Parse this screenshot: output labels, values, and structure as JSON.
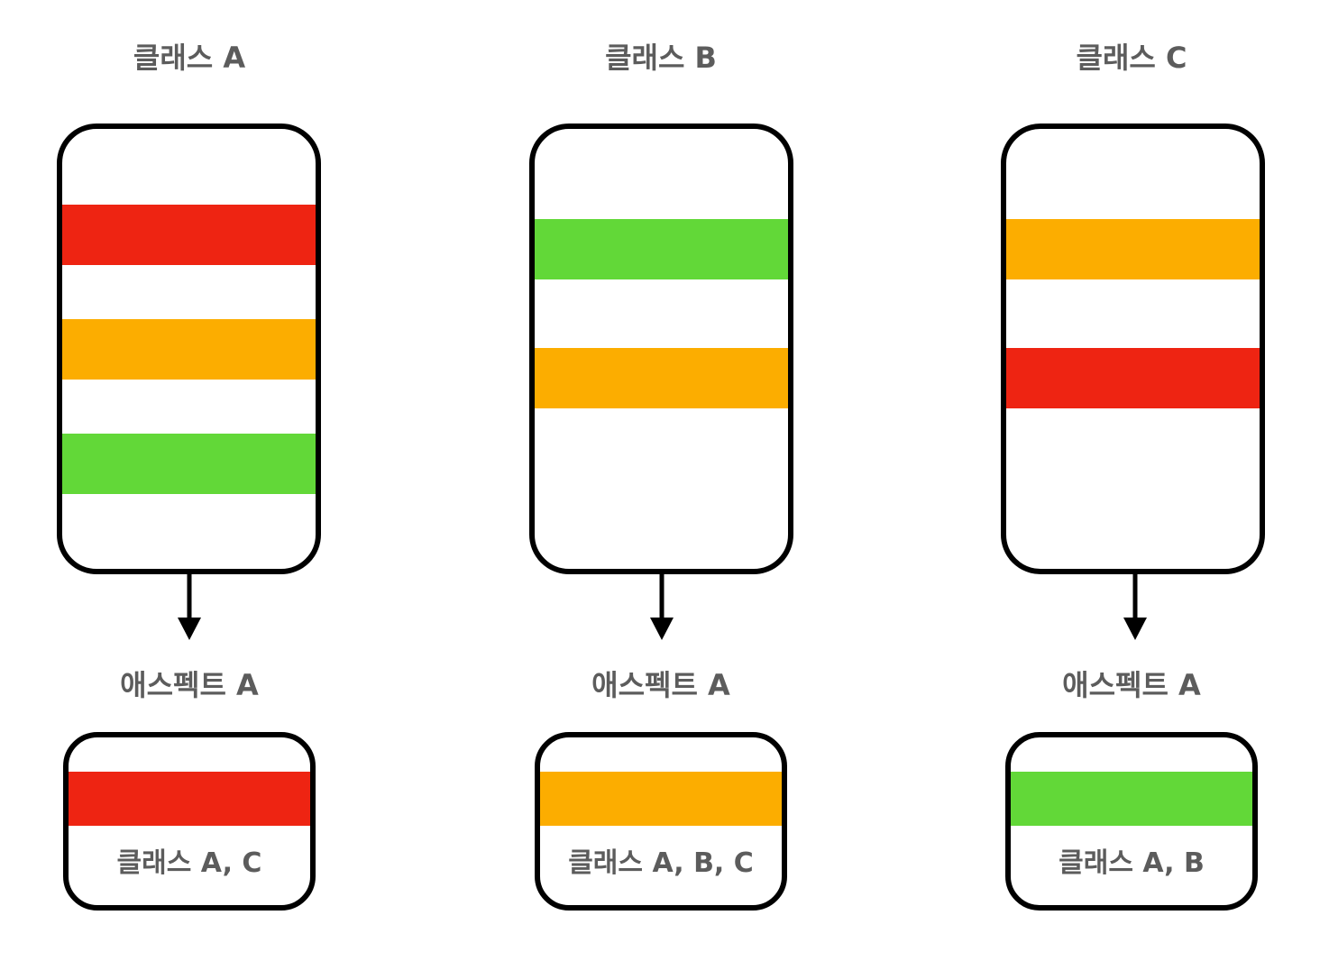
{
  "colors": {
    "red": "#ee2412",
    "orange": "#fcad00",
    "green": "#62d838",
    "text": "#5c5c5c",
    "border": "#000000"
  },
  "columns": [
    {
      "class_title": "클래스 A",
      "stripes": [
        "red",
        "orange",
        "green"
      ],
      "arrow_icon": "down-arrow-icon",
      "aspect_title": "애스펙트 A",
      "aspect_stripe": "red",
      "aspect_label": "클래스 A, C"
    },
    {
      "class_title": "클래스 B",
      "stripes": [
        "green",
        "orange"
      ],
      "arrow_icon": "down-arrow-icon",
      "aspect_title": "애스펙트 A",
      "aspect_stripe": "orange",
      "aspect_label": "클래스 A, B, C"
    },
    {
      "class_title": "클래스 C",
      "stripes": [
        "orange",
        "red"
      ],
      "arrow_icon": "down-arrow-icon",
      "aspect_title": "애스펙트 A",
      "aspect_stripe": "green",
      "aspect_label": "클래스 A, B"
    }
  ]
}
